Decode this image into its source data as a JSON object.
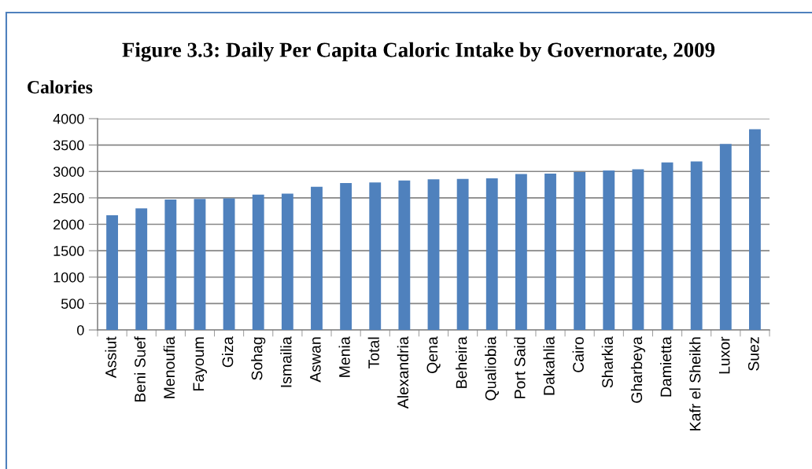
{
  "chart_data": {
    "type": "bar",
    "title": "Figure 3.3: Daily Per Capita Caloric Intake by Governorate, 2009",
    "ylabel": "Calories",
    "categories": [
      "Assiut",
      "Beni Suef",
      "Menoufia",
      "Fayoum",
      "Giza",
      "Sohag",
      "Ismailia",
      "Aswan",
      "Menia",
      "Total",
      "Alexandria",
      "Qena",
      "Beheira",
      "Qualiobia",
      "Port Said",
      "Dakahlia",
      "Cairo",
      "Sharkia",
      "Gharbeya",
      "Damietta",
      "Kafr el Sheikh",
      "Luxor",
      "Suez"
    ],
    "values": [
      2170,
      2300,
      2470,
      2480,
      2490,
      2560,
      2580,
      2710,
      2780,
      2790,
      2830,
      2850,
      2860,
      2870,
      2950,
      2960,
      2990,
      3020,
      3040,
      3170,
      3190,
      3520,
      3800
    ],
    "color": "#4f81bd",
    "ylim": [
      0,
      4000
    ],
    "yticks": [
      0,
      500,
      1000,
      1500,
      2000,
      2500,
      3000,
      3500,
      4000
    ],
    "grid": "y"
  }
}
